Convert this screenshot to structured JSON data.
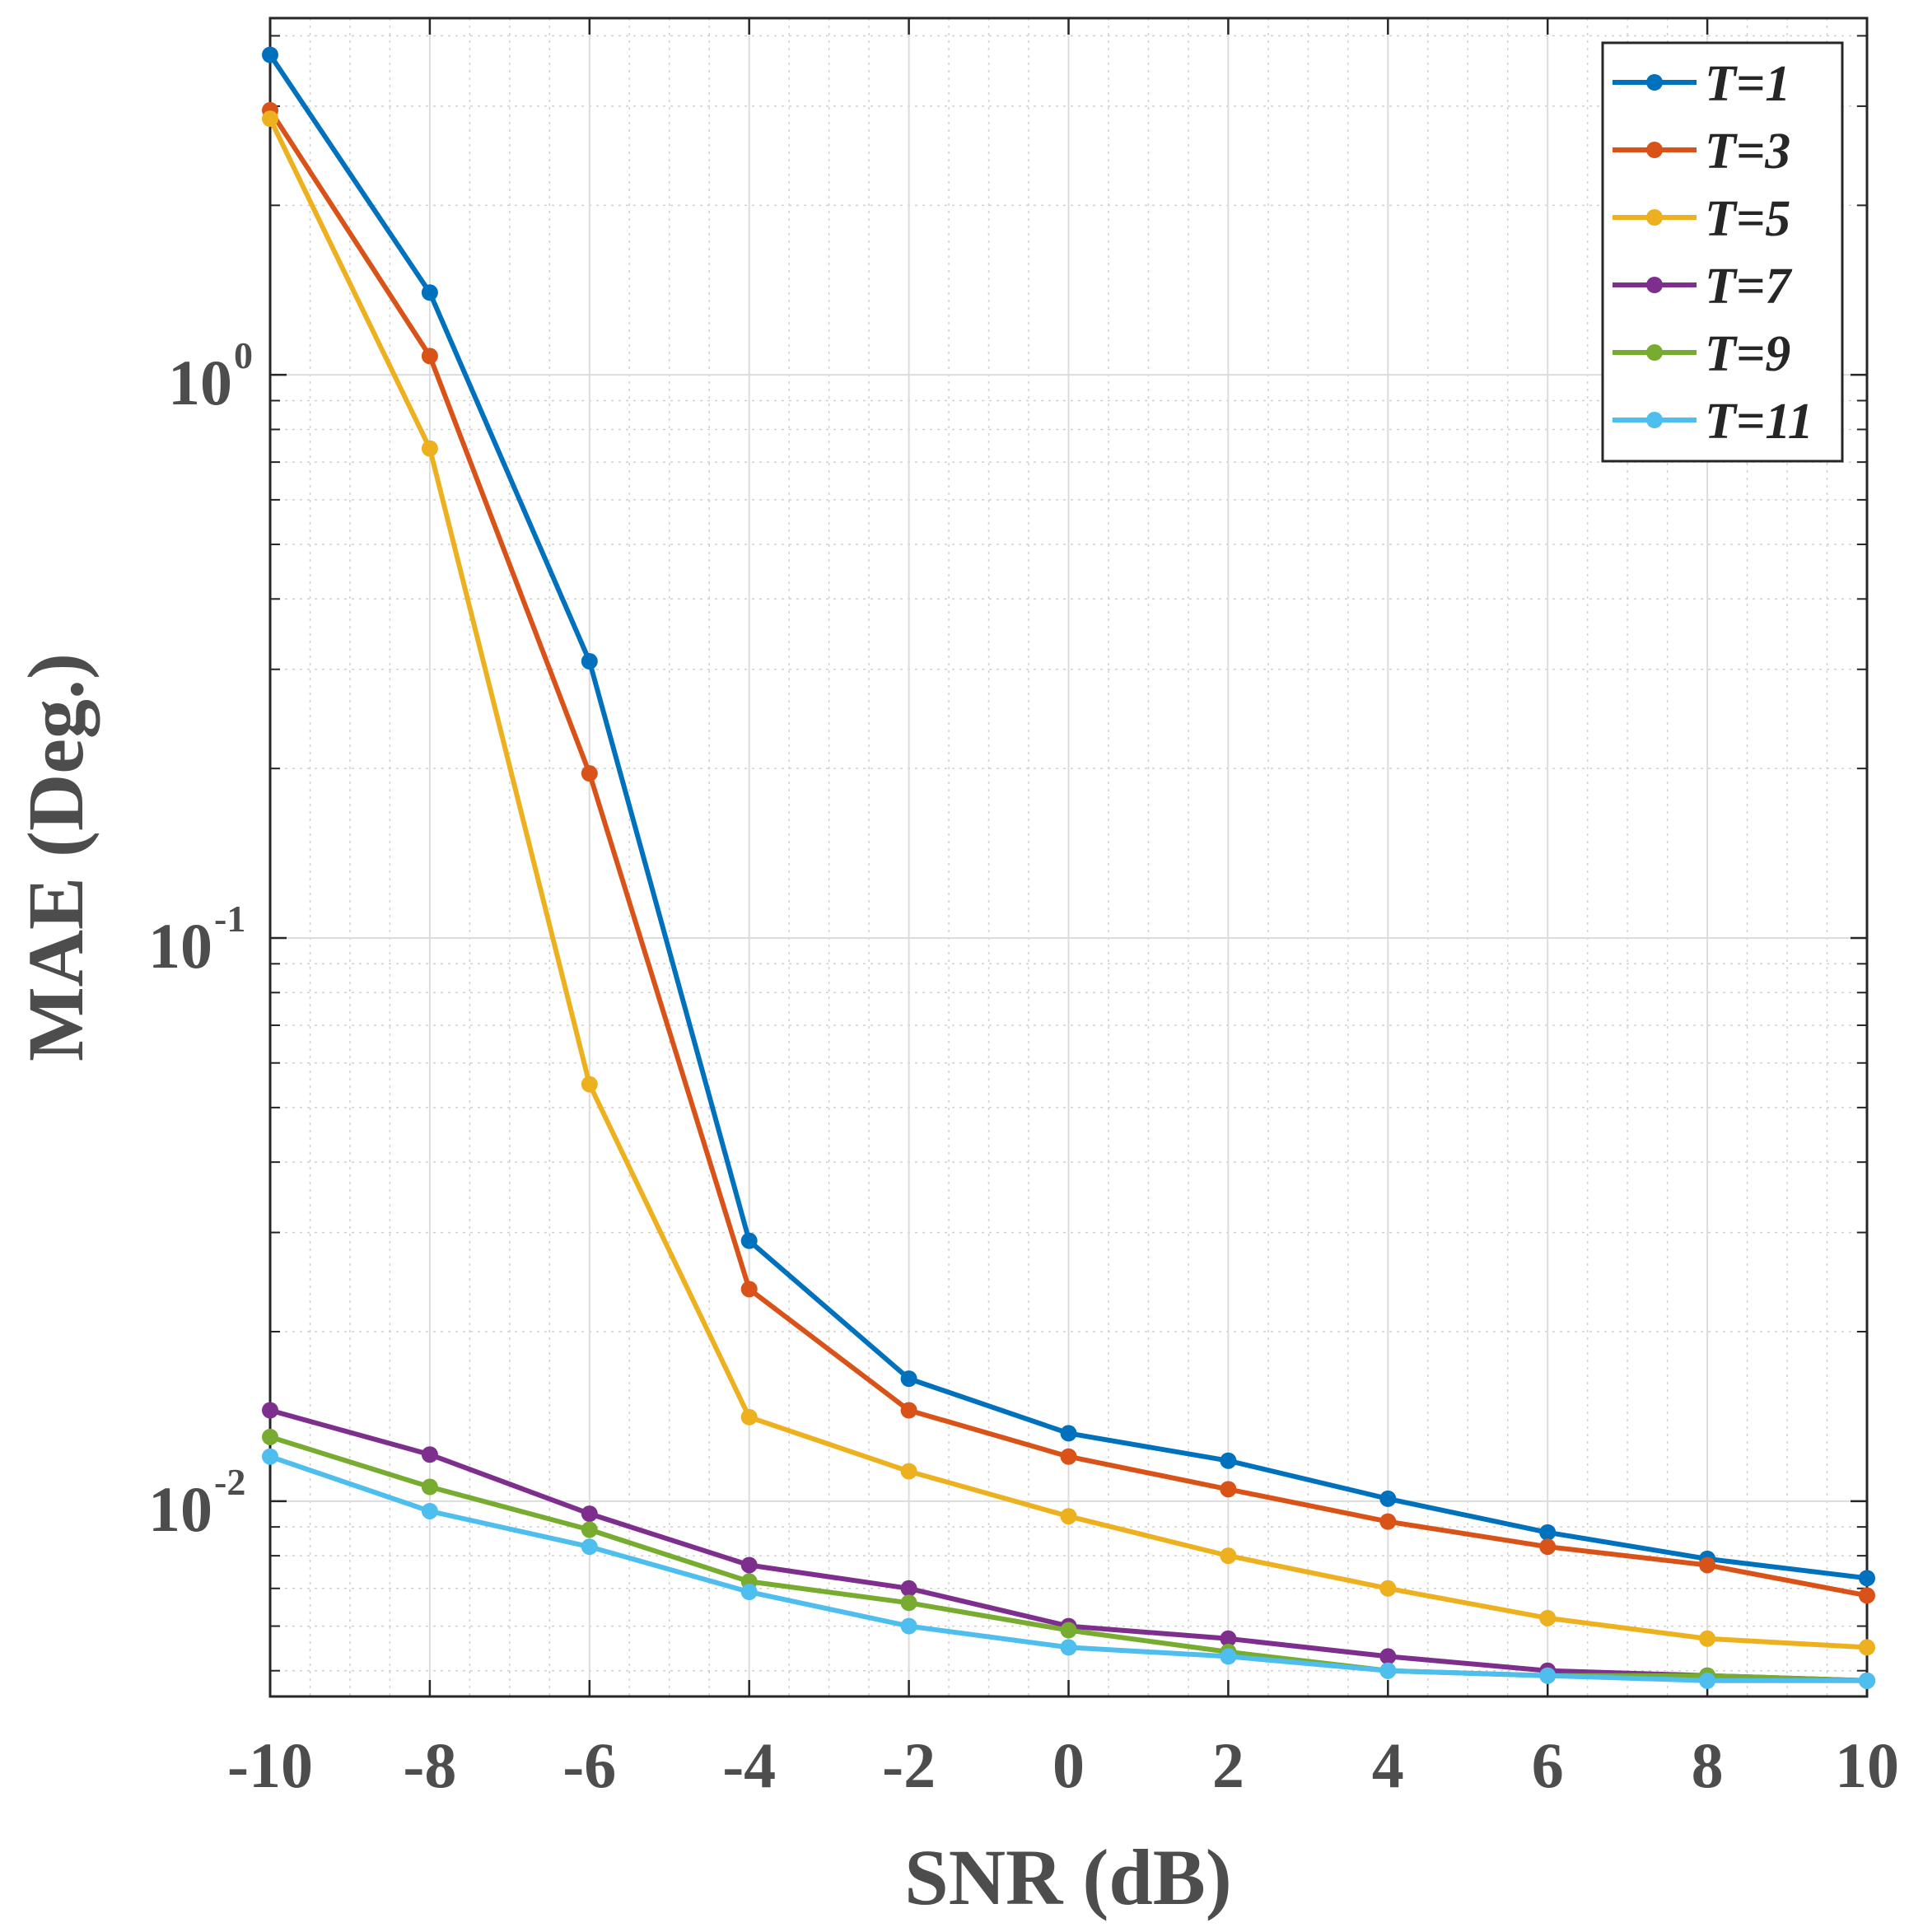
{
  "chart_data": {
    "type": "line",
    "title": "",
    "xlabel": "SNR (dB)",
    "ylabel": "MAE (Deg.)",
    "xscale": "linear",
    "yscale": "log",
    "xlim": [
      -10,
      10
    ],
    "ylim": [
      0.0045,
      4.3
    ],
    "grid": true,
    "legend_position": "top-right",
    "x": [
      -10,
      -8,
      -6,
      -4,
      -2,
      0,
      2,
      4,
      6,
      8,
      10
    ],
    "xticks": [
      "-10",
      "-8",
      "-6",
      "-4",
      "-2",
      "0",
      "2",
      "4",
      "6",
      "8",
      "10"
    ],
    "yticks": [
      {
        "value": 1,
        "base": "10",
        "exp": "0"
      },
      {
        "value": 0.1,
        "base": "10",
        "exp": "-1"
      },
      {
        "value": 0.01,
        "base": "10",
        "exp": "-2"
      }
    ],
    "series": [
      {
        "name": "T=1",
        "color": "#0072BD",
        "values": [
          3.7,
          1.4,
          0.31,
          0.029,
          0.0165,
          0.0132,
          0.0118,
          0.0101,
          0.0088,
          0.0079,
          0.0073
        ]
      },
      {
        "name": "T=3",
        "color": "#D95319",
        "values": [
          2.95,
          1.08,
          0.196,
          0.0238,
          0.0145,
          0.012,
          0.0105,
          0.0092,
          0.0083,
          0.0077,
          0.0068
        ]
      },
      {
        "name": "T=5",
        "color": "#EDB120",
        "values": [
          2.85,
          0.74,
          0.055,
          0.0141,
          0.0113,
          0.0094,
          0.008,
          0.007,
          0.0062,
          0.0057,
          0.0055
        ]
      },
      {
        "name": "T=7",
        "color": "#7E2F8E",
        "values": [
          0.0145,
          0.0121,
          0.0095,
          0.0077,
          0.007,
          0.006,
          0.0057,
          0.0053,
          0.005,
          0.0049,
          0.0048
        ]
      },
      {
        "name": "T=9",
        "color": "#77AC30",
        "values": [
          0.013,
          0.0106,
          0.0089,
          0.0072,
          0.0066,
          0.0059,
          0.0054,
          0.005,
          0.0049,
          0.0049,
          0.0048
        ]
      },
      {
        "name": "T=11",
        "color": "#4DBEEE",
        "values": [
          0.012,
          0.0096,
          0.0083,
          0.0069,
          0.006,
          0.0055,
          0.0053,
          0.005,
          0.0049,
          0.0048,
          0.0048
        ]
      }
    ]
  }
}
